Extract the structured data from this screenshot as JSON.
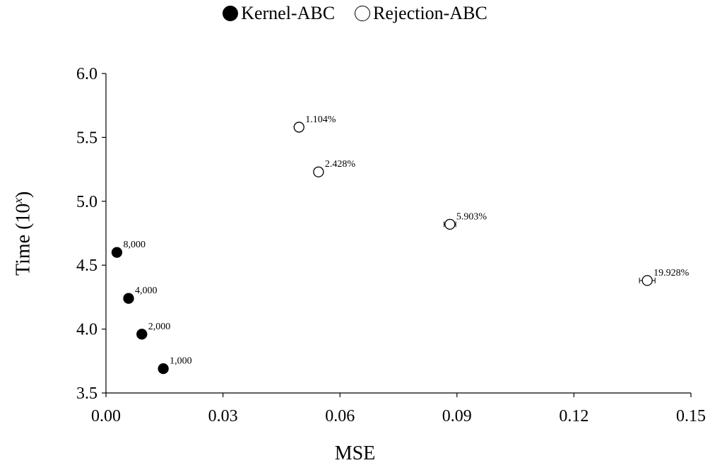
{
  "chart_data": {
    "type": "scatter",
    "title": "",
    "xlabel": "MSE",
    "ylabel_main": "Time (10",
    "ylabel_sup": "x",
    "ylabel_end": ")",
    "xlim": [
      0.0,
      0.15
    ],
    "ylim": [
      3.5,
      6.0
    ],
    "xticks": [
      "0.00",
      "0.03",
      "0.06",
      "0.09",
      "0.12",
      "0.15"
    ],
    "yticks": [
      "3.5",
      "4.0",
      "4.5",
      "5.0",
      "5.5",
      "6.0"
    ],
    "legend_position": "top-center",
    "grid": false,
    "series": [
      {
        "name": "Kernel-ABC",
        "marker": "filled-circle",
        "points": [
          {
            "x": 0.0028,
            "y": 4.6,
            "label": "8,000"
          },
          {
            "x": 0.0058,
            "y": 4.24,
            "label": "4,000"
          },
          {
            "x": 0.0092,
            "y": 3.96,
            "label": "2,000"
          },
          {
            "x": 0.0147,
            "y": 3.69,
            "label": "1,000"
          }
        ]
      },
      {
        "name": "Rejection-ABC",
        "marker": "open-circle",
        "points": [
          {
            "x": 0.0495,
            "y": 5.58,
            "label": "1.104%"
          },
          {
            "x": 0.0545,
            "y": 5.23,
            "label": "2.428%"
          },
          {
            "x": 0.0882,
            "y": 4.82,
            "label": "5.903%",
            "xerr": 0.0015
          },
          {
            "x": 0.1388,
            "y": 4.38,
            "label": "19.928%",
            "xerr": 0.002
          }
        ]
      }
    ]
  }
}
